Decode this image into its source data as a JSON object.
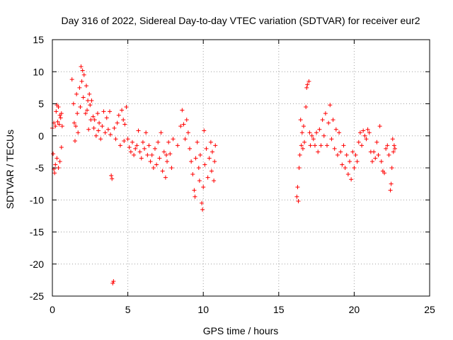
{
  "chart_data": {
    "type": "scatter",
    "title": "Day 316 of 2022, Sidereal Day-to-day VTEC variation (SDTVAR) for receiver eur2",
    "xlabel": "GPS time / hours",
    "ylabel": "SDTVAR / TECUs",
    "xlim": [
      0,
      25
    ],
    "ylim": [
      -25,
      15
    ],
    "x_ticks": [
      0,
      5,
      10,
      15,
      20,
      25
    ],
    "y_ticks": [
      15,
      10,
      5,
      0,
      -5,
      -10,
      -15,
      -20,
      -25
    ],
    "x_tick_labels": [
      "0",
      "5",
      "10",
      "15",
      "20",
      "25"
    ],
    "y_tick_labels": [
      "15",
      "10",
      "5",
      "0",
      "-5",
      "-10",
      "-15",
      "-20",
      "-25"
    ],
    "grid": true,
    "marker": "+",
    "color": "#ff0000",
    "series": [
      {
        "name": "eur2",
        "points": [
          [
            0.0,
            1.2
          ],
          [
            0.05,
            -2.8
          ],
          [
            0.1,
            -5.2
          ],
          [
            0.1,
            2.0
          ],
          [
            0.15,
            -5.8
          ],
          [
            0.2,
            1.5
          ],
          [
            0.2,
            -4.5
          ],
          [
            0.25,
            3.8
          ],
          [
            0.3,
            4.8
          ],
          [
            0.3,
            -3.5
          ],
          [
            0.35,
            2.2
          ],
          [
            0.4,
            4.5
          ],
          [
            0.4,
            -5.0
          ],
          [
            0.45,
            1.8
          ],
          [
            0.5,
            3.2
          ],
          [
            0.5,
            -4.0
          ],
          [
            0.55,
            2.8
          ],
          [
            0.6,
            -1.8
          ],
          [
            0.6,
            3.5
          ],
          [
            0.65,
            1.5
          ],
          [
            1.3,
            8.8
          ],
          [
            1.4,
            5.0
          ],
          [
            1.45,
            2.0
          ],
          [
            1.5,
            -0.8
          ],
          [
            1.55,
            1.5
          ],
          [
            1.6,
            6.5
          ],
          [
            1.65,
            3.5
          ],
          [
            1.7,
            0.5
          ],
          [
            1.8,
            7.5
          ],
          [
            1.85,
            4.5
          ],
          [
            1.9,
            10.8
          ],
          [
            1.95,
            8.5
          ],
          [
            2.0,
            10.2
          ],
          [
            2.05,
            6.0
          ],
          [
            2.1,
            9.5
          ],
          [
            2.2,
            3.5
          ],
          [
            2.25,
            7.8
          ],
          [
            2.3,
            4.0
          ],
          [
            2.35,
            5.5
          ],
          [
            2.4,
            1.0
          ],
          [
            2.45,
            6.5
          ],
          [
            2.5,
            4.8
          ],
          [
            2.55,
            2.5
          ],
          [
            2.6,
            5.5
          ],
          [
            2.7,
            3.0
          ],
          [
            2.75,
            1.2
          ],
          [
            2.8,
            2.5
          ],
          [
            2.9,
            0.0
          ],
          [
            3.0,
            3.5
          ],
          [
            3.05,
            0.8
          ],
          [
            3.1,
            2.0
          ],
          [
            3.2,
            -0.5
          ],
          [
            3.3,
            1.5
          ],
          [
            3.4,
            3.8
          ],
          [
            3.5,
            0.5
          ],
          [
            3.6,
            2.8
          ],
          [
            3.7,
            1.0
          ],
          [
            3.8,
            3.8
          ],
          [
            3.85,
            0.2
          ],
          [
            3.9,
            -6.2
          ],
          [
            3.95,
            -6.7
          ],
          [
            4.0,
            -23.0
          ],
          [
            4.05,
            -22.7
          ],
          [
            4.1,
            1.2
          ],
          [
            4.2,
            -0.5
          ],
          [
            4.3,
            2.0
          ],
          [
            4.4,
            3.2
          ],
          [
            4.5,
            -1.5
          ],
          [
            4.6,
            4.0
          ],
          [
            4.7,
            2.5
          ],
          [
            4.75,
            -0.8
          ],
          [
            4.8,
            1.8
          ],
          [
            4.9,
            4.5
          ],
          [
            5.0,
            -0.5
          ],
          [
            5.1,
            -1.8
          ],
          [
            5.2,
            -2.5
          ],
          [
            5.3,
            -1.0
          ],
          [
            5.4,
            -3.0
          ],
          [
            5.5,
            -2.0
          ],
          [
            5.6,
            -1.5
          ],
          [
            5.7,
            0.8
          ],
          [
            5.8,
            -2.5
          ],
          [
            5.9,
            -3.5
          ],
          [
            6.0,
            -1.0
          ],
          [
            6.1,
            -2.0
          ],
          [
            6.2,
            0.5
          ],
          [
            6.3,
            -3.0
          ],
          [
            6.4,
            -1.5
          ],
          [
            6.5,
            -4.0
          ],
          [
            6.6,
            -3.0
          ],
          [
            6.7,
            -5.0
          ],
          [
            6.8,
            -2.0
          ],
          [
            6.9,
            -4.5
          ],
          [
            7.0,
            -1.0
          ],
          [
            7.1,
            -3.5
          ],
          [
            7.2,
            0.5
          ],
          [
            7.3,
            -5.5
          ],
          [
            7.4,
            -2.5
          ],
          [
            7.5,
            -6.5
          ],
          [
            7.55,
            -3.0
          ],
          [
            7.6,
            -4.0
          ],
          [
            7.7,
            -1.0
          ],
          [
            7.8,
            -2.8
          ],
          [
            7.9,
            -5.0
          ],
          [
            8.0,
            -0.5
          ],
          [
            8.3,
            -1.5
          ],
          [
            8.5,
            1.5
          ],
          [
            8.6,
            4.0
          ],
          [
            8.7,
            1.8
          ],
          [
            8.8,
            -0.5
          ],
          [
            8.9,
            2.5
          ],
          [
            9.0,
            0.5
          ],
          [
            9.1,
            -2.0
          ],
          [
            9.2,
            -4.0
          ],
          [
            9.3,
            -6.0
          ],
          [
            9.4,
            -8.5
          ],
          [
            9.45,
            -9.5
          ],
          [
            9.5,
            -3.5
          ],
          [
            9.6,
            -1.0
          ],
          [
            9.7,
            -5.0
          ],
          [
            9.75,
            -7.0
          ],
          [
            9.8,
            -3.0
          ],
          [
            9.9,
            -10.5
          ],
          [
            9.95,
            -11.5
          ],
          [
            10.0,
            -8.0
          ],
          [
            10.05,
            0.8
          ],
          [
            10.1,
            -4.5
          ],
          [
            10.2,
            -2.0
          ],
          [
            10.3,
            -6.5
          ],
          [
            10.4,
            -3.5
          ],
          [
            10.5,
            -1.0
          ],
          [
            10.55,
            -5.5
          ],
          [
            10.6,
            -2.5
          ],
          [
            10.7,
            -7.0
          ],
          [
            10.75,
            -4.0
          ],
          [
            10.8,
            -1.5
          ],
          [
            16.2,
            -9.5
          ],
          [
            16.25,
            -8.0
          ],
          [
            16.3,
            -10.2
          ],
          [
            16.35,
            -5.0
          ],
          [
            16.4,
            -3.0
          ],
          [
            16.45,
            2.5
          ],
          [
            16.5,
            -1.5
          ],
          [
            16.55,
            0.5
          ],
          [
            16.6,
            -2.0
          ],
          [
            16.65,
            1.5
          ],
          [
            16.7,
            -1.0
          ],
          [
            16.8,
            4.5
          ],
          [
            16.85,
            7.5
          ],
          [
            16.9,
            8.0
          ],
          [
            17.0,
            8.5
          ],
          [
            17.05,
            0.5
          ],
          [
            17.1,
            -1.5
          ],
          [
            17.2,
            0.0
          ],
          [
            17.3,
            -0.5
          ],
          [
            17.4,
            -1.5
          ],
          [
            17.5,
            0.5
          ],
          [
            17.6,
            -2.5
          ],
          [
            17.7,
            1.0
          ],
          [
            17.8,
            -1.5
          ],
          [
            17.9,
            2.5
          ],
          [
            18.0,
            0.0
          ],
          [
            18.1,
            3.5
          ],
          [
            18.2,
            -1.5
          ],
          [
            18.3,
            2.0
          ],
          [
            18.4,
            4.8
          ],
          [
            18.5,
            -0.5
          ],
          [
            18.6,
            2.5
          ],
          [
            18.7,
            -2.0
          ],
          [
            18.8,
            1.0
          ],
          [
            18.9,
            -3.0
          ],
          [
            19.0,
            0.5
          ],
          [
            19.1,
            -2.5
          ],
          [
            19.2,
            -4.5
          ],
          [
            19.3,
            -1.5
          ],
          [
            19.4,
            -5.0
          ],
          [
            19.5,
            -3.0
          ],
          [
            19.6,
            -6.0
          ],
          [
            19.7,
            -4.0
          ],
          [
            19.8,
            -6.8
          ],
          [
            19.9,
            -2.5
          ],
          [
            20.0,
            -5.0
          ],
          [
            20.1,
            -3.0
          ],
          [
            20.2,
            -4.0
          ],
          [
            20.3,
            -1.0
          ],
          [
            20.4,
            0.5
          ],
          [
            20.5,
            -1.5
          ],
          [
            20.6,
            0.8
          ],
          [
            20.7,
            0.0
          ],
          [
            20.8,
            -0.5
          ],
          [
            20.9,
            1.0
          ],
          [
            21.0,
            0.5
          ],
          [
            21.1,
            -2.5
          ],
          [
            21.2,
            -4.0
          ],
          [
            21.3,
            -2.5
          ],
          [
            21.4,
            -3.5
          ],
          [
            21.5,
            -1.0
          ],
          [
            21.6,
            -3.0
          ],
          [
            21.7,
            1.5
          ],
          [
            21.8,
            -4.0
          ],
          [
            21.9,
            -5.5
          ],
          [
            22.0,
            -5.8
          ],
          [
            22.1,
            -2.0
          ],
          [
            22.2,
            -1.5
          ],
          [
            22.3,
            -3.0
          ],
          [
            22.4,
            -8.5
          ],
          [
            22.45,
            -7.5
          ],
          [
            22.5,
            -5.0
          ],
          [
            22.55,
            -0.5
          ],
          [
            22.6,
            -2.5
          ],
          [
            22.65,
            -1.5
          ],
          [
            22.7,
            -2.0
          ]
        ]
      }
    ]
  }
}
